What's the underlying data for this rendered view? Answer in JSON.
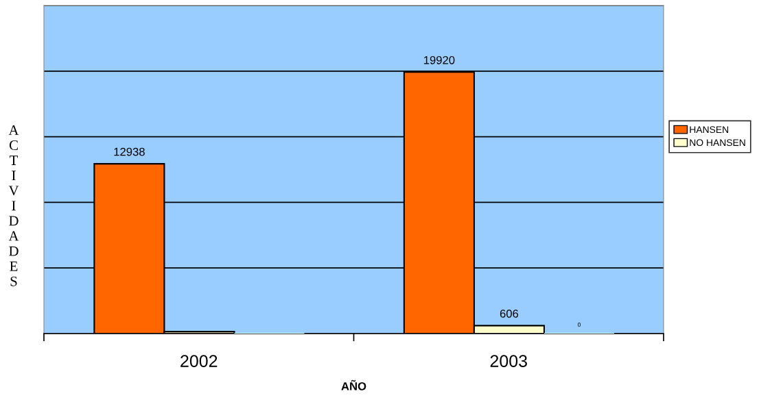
{
  "chart_data": {
    "type": "bar",
    "categories": [
      "2002",
      "2003"
    ],
    "series": [
      {
        "name": "HANSEN",
        "color": "#ff6600",
        "values": [
          12938,
          19920
        ],
        "value_labels": [
          "12938",
          "19920"
        ]
      },
      {
        "name": "NO HANSEN",
        "color": "#ffffcc",
        "values": [
          150,
          606
        ],
        "value_labels": [
          null,
          "606"
        ]
      },
      {
        "color": "#ccffff",
        "values": [
          0,
          0
        ],
        "value_labels": [
          null,
          "0"
        ]
      }
    ],
    "xlabel": "AÑO",
    "ylabel": "ACTIVIDADES",
    "ylim": [
      0,
      25000
    ],
    "yticks": [
      {
        "value": 0,
        "label": null
      },
      {
        "value": 5000,
        "label": null
      },
      {
        "value": 10000,
        "label": null
      },
      {
        "value": 15000,
        "label": null
      },
      {
        "value": 20000,
        "label": null
      },
      {
        "value": 25000,
        "label": null
      }
    ],
    "tick_labels": "x",
    "grid": "y",
    "legend": "right"
  }
}
